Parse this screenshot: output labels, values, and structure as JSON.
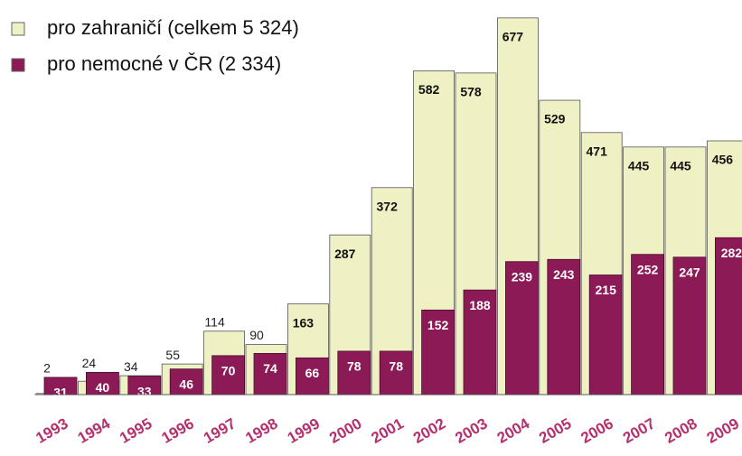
{
  "chart_data": {
    "type": "bar",
    "categories": [
      "1993",
      "1994",
      "1995",
      "1996",
      "1997",
      "1998",
      "1999",
      "2000",
      "2001",
      "2002",
      "2003",
      "2004",
      "2005",
      "2006",
      "2007",
      "2008",
      "2009"
    ],
    "series": [
      {
        "name": "pro zahraničí (celkem 5 324)",
        "color": "#eff1c4",
        "values": [
          2,
          24,
          34,
          55,
          114,
          90,
          163,
          287,
          372,
          582,
          578,
          677,
          529,
          471,
          445,
          445,
          456
        ]
      },
      {
        "name": "pro nemocné v ČR (2 334)",
        "color": "#8c1a56",
        "values": [
          31,
          40,
          33,
          46,
          70,
          74,
          66,
          78,
          78,
          152,
          188,
          239,
          243,
          215,
          252,
          247,
          282
        ]
      }
    ],
    "ylim": [
      0,
      680
    ],
    "legend": "upper left"
  }
}
